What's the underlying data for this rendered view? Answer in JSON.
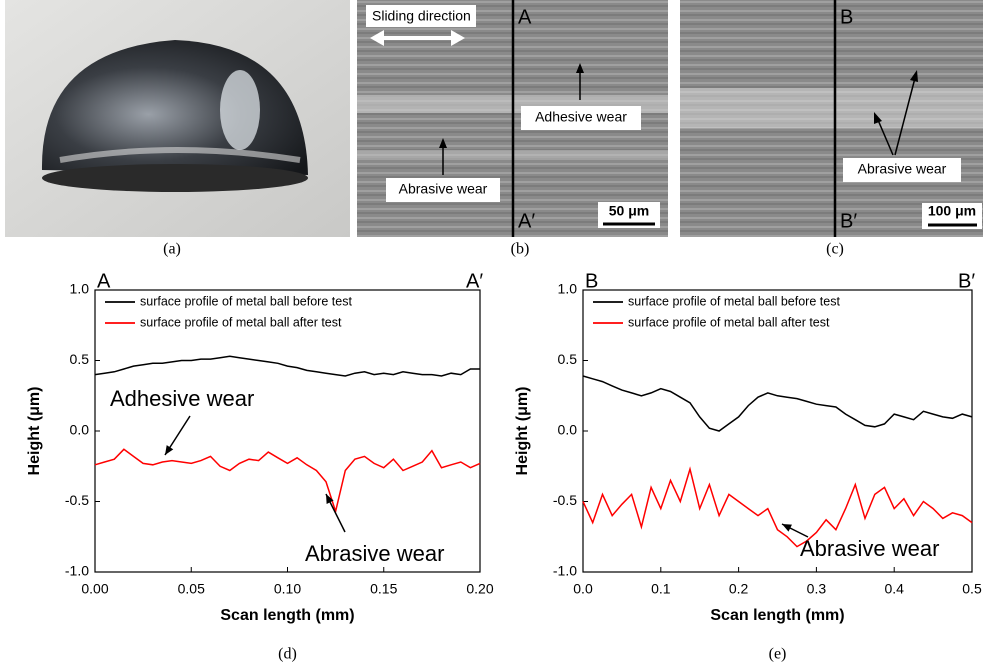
{
  "panels": [
    {
      "label": "(a)"
    },
    {
      "label": "(b)",
      "texts": [
        "Sliding direction",
        "A",
        "A′",
        "Adhesive wear",
        "Abrasive wear",
        "50 μm"
      ]
    },
    {
      "label": "(c)",
      "texts": [
        "B",
        "B′",
        "Abrasive wear",
        "100 μm"
      ]
    }
  ],
  "chart_data": [
    {
      "type": "line",
      "label": "(d)",
      "xlabel": "Scan length (mm)",
      "ylabel": "Height (μm)",
      "corner_labels": [
        "A",
        "A′"
      ],
      "annotations": [
        "Adhesive wear",
        "Abrasive wear"
      ],
      "legend": "upper left",
      "x": [
        0,
        0.005,
        0.01,
        0.015,
        0.02,
        0.025,
        0.03,
        0.035,
        0.04,
        0.045,
        0.05,
        0.055,
        0.06,
        0.065,
        0.07,
        0.075,
        0.08,
        0.085,
        0.09,
        0.095,
        0.1,
        0.105,
        0.11,
        0.115,
        0.12,
        0.125,
        0.13,
        0.135,
        0.14,
        0.145,
        0.15,
        0.155,
        0.16,
        0.165,
        0.17,
        0.175,
        0.18,
        0.185,
        0.19,
        0.195,
        0.2
      ],
      "xlim": [
        0,
        0.2
      ],
      "xticks": [
        {
          "value": 0,
          "label": "0.00"
        },
        0.05,
        {
          "value": 0.1,
          "label": "0.10"
        },
        0.15,
        {
          "value": 0.2,
          "label": "0.20"
        }
      ],
      "ylim": [
        -1,
        1
      ],
      "yticks": [
        {
          "value": -1,
          "label": "-1.0"
        },
        -0.5,
        {
          "value": 0,
          "label": "0.0"
        },
        0.5,
        {
          "value": 1,
          "label": "1.0"
        }
      ],
      "series": [
        {
          "name": "surface profile of metal ball before test",
          "color": "#000000",
          "values": [
            0.4,
            0.41,
            0.42,
            0.44,
            0.46,
            0.47,
            0.48,
            0.48,
            0.49,
            0.5,
            0.5,
            0.51,
            0.51,
            0.52,
            0.53,
            0.52,
            0.51,
            0.5,
            0.49,
            0.48,
            0.46,
            0.45,
            0.43,
            0.42,
            0.41,
            0.4,
            0.39,
            0.41,
            0.42,
            0.4,
            0.41,
            0.4,
            0.42,
            0.41,
            0.4,
            0.4,
            0.39,
            0.41,
            0.4,
            0.44,
            0.44
          ]
        },
        {
          "name": "surface profile of metal ball after test",
          "color": "#ff0000",
          "values": [
            -0.24,
            -0.22,
            -0.2,
            -0.13,
            -0.18,
            -0.23,
            -0.24,
            -0.22,
            -0.21,
            -0.22,
            -0.23,
            -0.21,
            -0.18,
            -0.25,
            -0.28,
            -0.23,
            -0.2,
            -0.21,
            -0.15,
            -0.19,
            -0.23,
            -0.19,
            -0.24,
            -0.28,
            -0.36,
            -0.57,
            -0.28,
            -0.2,
            -0.18,
            -0.23,
            -0.26,
            -0.2,
            -0.28,
            -0.25,
            -0.22,
            -0.14,
            -0.26,
            -0.24,
            -0.22,
            -0.26,
            -0.23
          ]
        }
      ]
    },
    {
      "type": "line",
      "label": "(e)",
      "xlabel": "Scan length (mm)",
      "ylabel": "Height (μm)",
      "corner_labels": [
        "B",
        "B′"
      ],
      "annotations": [
        "Abrasive wear"
      ],
      "legend": "upper left",
      "x": [
        0,
        0.0125,
        0.025,
        0.0375,
        0.05,
        0.0625,
        0.075,
        0.0875,
        0.1,
        0.1125,
        0.125,
        0.1375,
        0.15,
        0.1625,
        0.175,
        0.1875,
        0.2,
        0.2125,
        0.225,
        0.2375,
        0.25,
        0.2625,
        0.275,
        0.2875,
        0.3,
        0.3125,
        0.325,
        0.3375,
        0.35,
        0.3625,
        0.375,
        0.3875,
        0.4,
        0.4125,
        0.425,
        0.4375,
        0.45,
        0.4625,
        0.475,
        0.4875,
        0.5
      ],
      "xlim": [
        0,
        0.5
      ],
      "xticks": [
        {
          "value": 0,
          "label": "0.0"
        },
        0.1,
        0.2,
        0.3,
        0.4,
        0.5
      ],
      "ylim": [
        -1,
        1
      ],
      "yticks": [
        {
          "value": -1,
          "label": "-1.0"
        },
        -0.5,
        {
          "value": 0,
          "label": "0.0"
        },
        0.5,
        {
          "value": 1,
          "label": "1.0"
        }
      ],
      "series": [
        {
          "name": "surface profile of metal ball before test",
          "color": "#000000",
          "values": [
            0.39,
            0.37,
            0.35,
            0.32,
            0.29,
            0.27,
            0.25,
            0.27,
            0.3,
            0.28,
            0.24,
            0.2,
            0.1,
            0.02,
            0.0,
            0.05,
            0.1,
            0.18,
            0.24,
            0.27,
            0.25,
            0.24,
            0.23,
            0.21,
            0.19,
            0.18,
            0.17,
            0.12,
            0.08,
            0.04,
            0.03,
            0.05,
            0.12,
            0.1,
            0.08,
            0.14,
            0.12,
            0.1,
            0.09,
            0.12,
            0.1
          ]
        },
        {
          "name": "surface profile of metal ball after test",
          "color": "#ff0000",
          "values": [
            -0.5,
            -0.65,
            -0.45,
            -0.6,
            -0.52,
            -0.45,
            -0.68,
            -0.4,
            -0.55,
            -0.35,
            -0.5,
            -0.27,
            -0.55,
            -0.38,
            -0.6,
            -0.45,
            -0.5,
            -0.55,
            -0.6,
            -0.55,
            -0.7,
            -0.75,
            -0.82,
            -0.78,
            -0.72,
            -0.63,
            -0.7,
            -0.55,
            -0.38,
            -0.62,
            -0.45,
            -0.4,
            -0.55,
            -0.48,
            -0.6,
            -0.5,
            -0.55,
            -0.62,
            -0.58,
            -0.6,
            -0.65
          ]
        }
      ]
    }
  ]
}
